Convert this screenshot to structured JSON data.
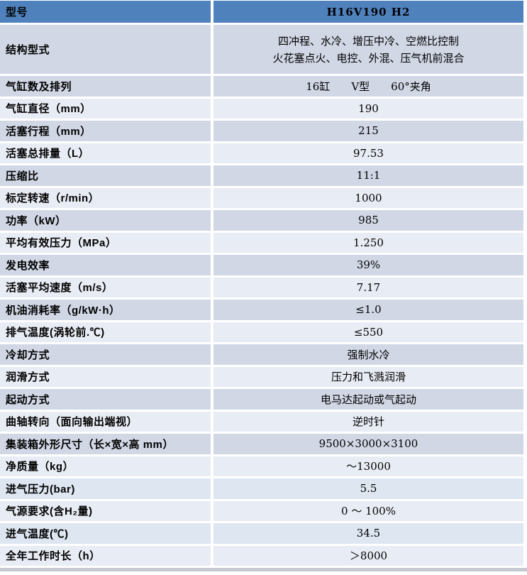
{
  "colors": {
    "header_blue": "#4F81BD",
    "row_dark": "#D1D7E5",
    "row_light": "#E8ECF4",
    "row_blue": "#DDE6F1",
    "bottom_bar": "#C5C8CF",
    "text": "#000000"
  },
  "table": {
    "header": {
      "label": "型号",
      "value": "H16V190 H2"
    },
    "rows": [
      {
        "label": "结构型式",
        "value": [
          "四冲程、水冷、增压中冷、空燃比控制",
          "火花塞点火、电控、外混、压气机前混合"
        ],
        "shade": "dark",
        "tall": true
      },
      {
        "label": "气缸数及排列",
        "value": "16缸　　V型　　60°夹角",
        "shade": "dark"
      },
      {
        "label": "气缸直径（mm）",
        "value": "190",
        "shade": "light"
      },
      {
        "label": "活塞行程（mm）",
        "value": "215",
        "shade": "dark"
      },
      {
        "label": "活塞总排量（L）",
        "value": "97.53",
        "shade": "light"
      },
      {
        "label": "压缩比",
        "value": "11:1",
        "shade": "dark"
      },
      {
        "label": "标定转速（r/min）",
        "value": "1000",
        "shade": "light"
      },
      {
        "label": "功率（kW）",
        "value": "985",
        "shade": "dark"
      },
      {
        "label": "平均有效压力（MPa）",
        "value": "1.250",
        "shade": "light"
      },
      {
        "label": "发电效率",
        "value": "39%",
        "shade": "dark"
      },
      {
        "label": "活塞平均速度（m/s）",
        "value": "7.17",
        "shade": "light"
      },
      {
        "label": "机油消耗率（g/kW·h）",
        "value": "≤1.0",
        "shade": "dark"
      },
      {
        "label": "排气温度(涡轮前.℃)",
        "value": "≤550",
        "shade": "light"
      },
      {
        "label": "冷却方式",
        "value": "强制水冷",
        "shade": "dark"
      },
      {
        "label": "润滑方式",
        "value": "压力和飞溅润滑",
        "shade": "light"
      },
      {
        "label": "起动方式",
        "value": "电马达起动或气起动",
        "shade": "dark"
      },
      {
        "label": "曲轴转向（面向输出端视）",
        "value": "逆时针",
        "shade": "light"
      },
      {
        "label": "集装箱外形尺寸（长×宽×高 mm）",
        "value": "9500×3000×3100",
        "shade": "dark"
      },
      {
        "label": "净质量（kg）",
        "value": "～13000",
        "shade": "light"
      },
      {
        "label": "进气压力(bar)",
        "value": "5.5",
        "shade": "blue"
      },
      {
        "label": "气源要求(含H₂量)",
        "value": "0 ～ 100%",
        "shade": "light"
      },
      {
        "label": "进气温度(℃)",
        "value": "34.5",
        "shade": "blue"
      },
      {
        "label": "全年工作时长（h）",
        "value": "＞8000",
        "shade": "light"
      }
    ]
  }
}
